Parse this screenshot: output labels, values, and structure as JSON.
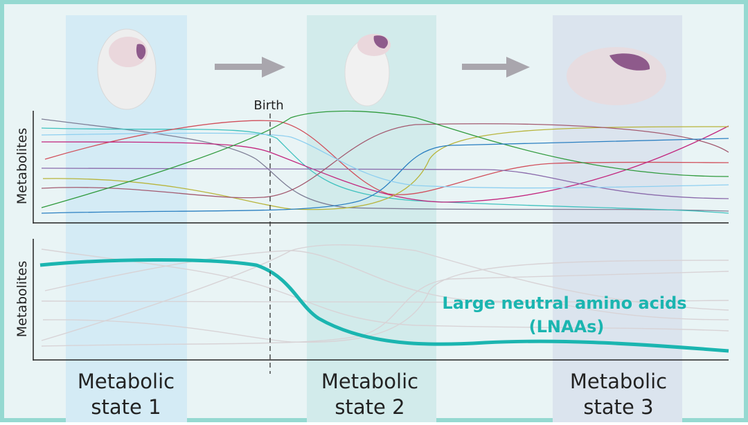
{
  "labels": {
    "birth": "Birth",
    "top_axis": "Metabolites",
    "bottom_axis": "Metabolites",
    "highlight_line1": "Large neutral amino acids",
    "highlight_line2": "(LNAAs)"
  },
  "states": [
    {
      "line1": "Metabolic",
      "line2": "state 1"
    },
    {
      "line1": "Metabolic",
      "line2": "state 2"
    },
    {
      "line1": "Metabolic",
      "line2": "state 3"
    }
  ]
}
